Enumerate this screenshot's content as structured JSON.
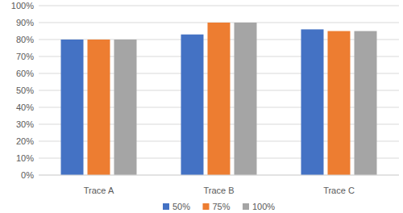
{
  "chart_data": {
    "type": "bar",
    "categories": [
      "Trace A",
      "Trace B",
      "Trace C"
    ],
    "series": [
      {
        "name": "50%",
        "color": "#4472c4",
        "values": [
          80,
          83,
          86
        ]
      },
      {
        "name": "75%",
        "color": "#ed7d31",
        "values": [
          80,
          90,
          85
        ]
      },
      {
        "name": "100%",
        "color": "#a5a5a5",
        "values": [
          80,
          90,
          85
        ]
      }
    ],
    "ylim": [
      0,
      100
    ],
    "yticks": [
      {
        "value": 0,
        "label": "0%"
      },
      {
        "value": 10,
        "label": "10%"
      },
      {
        "value": 20,
        "label": "20%"
      },
      {
        "value": 30,
        "label": "30%"
      },
      {
        "value": 40,
        "label": "40%"
      },
      {
        "value": 50,
        "label": "50%"
      },
      {
        "value": 60,
        "label": "60%"
      },
      {
        "value": 70,
        "label": "70%"
      },
      {
        "value": 80,
        "label": "80%"
      },
      {
        "value": 90,
        "label": "90%"
      },
      {
        "value": 100,
        "label": "100%"
      }
    ],
    "grid": true,
    "legend": "bottom"
  }
}
